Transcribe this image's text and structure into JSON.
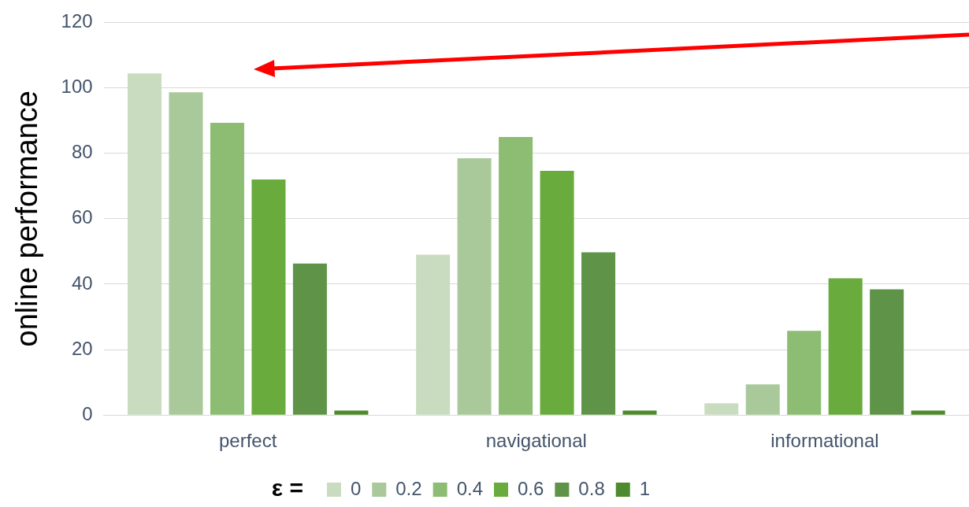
{
  "chart_data": {
    "type": "bar",
    "ylabel": "online performance",
    "legend_title": "ε =",
    "categories": [
      "perfect",
      "navigational",
      "informational"
    ],
    "series": [
      {
        "name": "0",
        "color": "#c9dcc0",
        "values": [
          104.4,
          49,
          3.6
        ]
      },
      {
        "name": "0.2",
        "color": "#a9c99a",
        "values": [
          98.6,
          78.5,
          9.4
        ]
      },
      {
        "name": "0.4",
        "color": "#8cbd72",
        "values": [
          89.3,
          85,
          25.7
        ]
      },
      {
        "name": "0.6",
        "color": "#6aab3e",
        "values": [
          72,
          74.6,
          41.8
        ]
      },
      {
        "name": "0.8",
        "color": "#5f9448",
        "values": [
          46.3,
          49.7,
          38.4
        ]
      },
      {
        "name": "1",
        "color": "#4e8a2e",
        "values": [
          1.4,
          1.4,
          1.4
        ]
      }
    ],
    "ylim": [
      0,
      120
    ],
    "yticks": [
      0,
      20,
      40,
      60,
      80,
      100,
      120
    ],
    "grid": "y",
    "legend": "bottom"
  }
}
